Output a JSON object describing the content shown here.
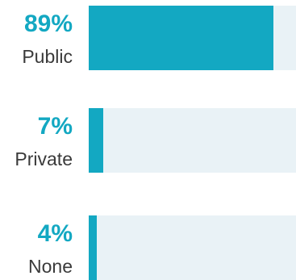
{
  "chart_data": {
    "type": "bar",
    "orientation": "horizontal",
    "categories": [
      "Public",
      "Private",
      "None"
    ],
    "values": [
      89,
      7,
      4
    ],
    "value_labels": [
      "89%",
      "7%",
      "4%"
    ],
    "xlim": [
      0,
      100
    ],
    "grid": false,
    "legend": "none",
    "colors": {
      "bar": "#13a8c2",
      "track": "#e9f2f6",
      "value_text": "#13a8c2",
      "category_text": "#3a3a3a"
    }
  }
}
